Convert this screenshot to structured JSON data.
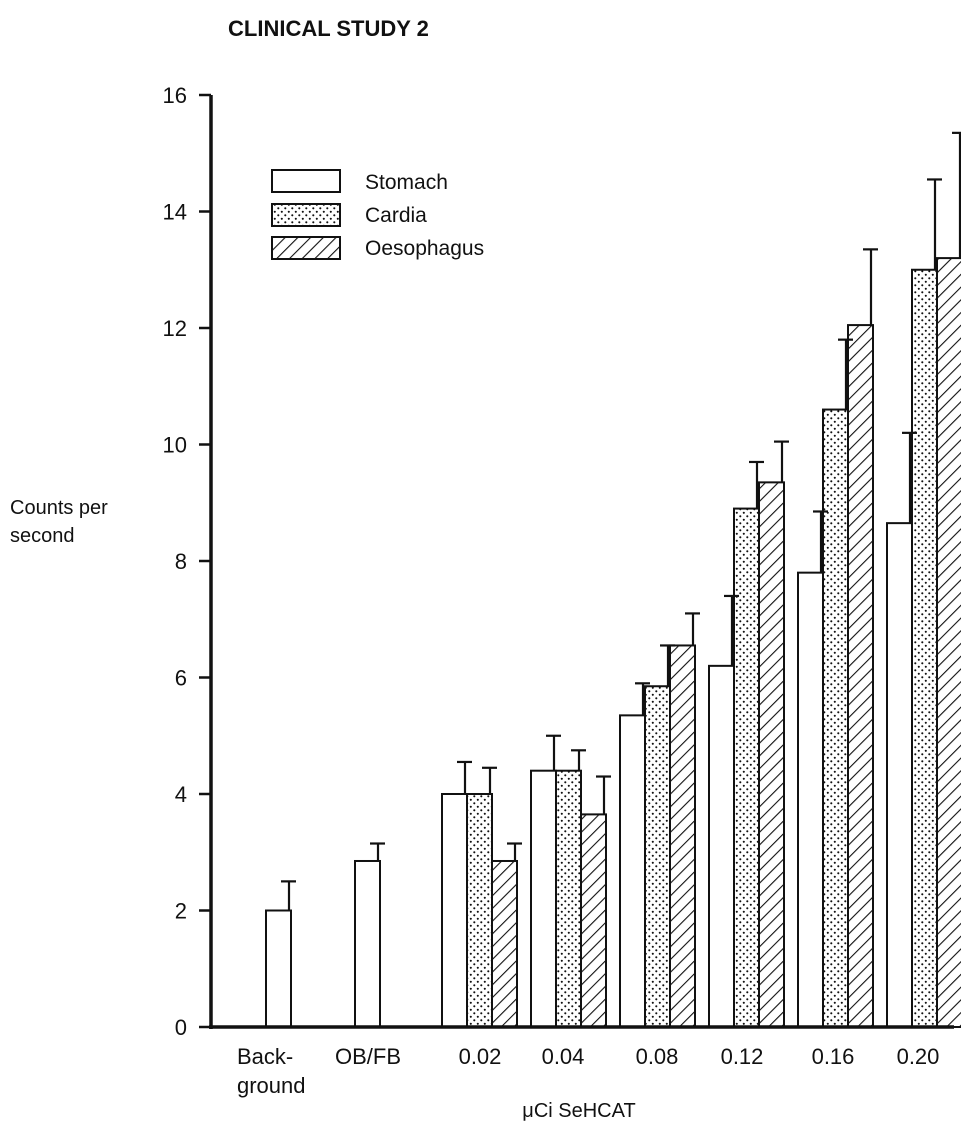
{
  "chart_data": {
    "type": "bar",
    "title": "CLINICAL STUDY 2",
    "ylabel": [
      "Counts per",
      "second"
    ],
    "xlabel": "μCi SeHCAT",
    "ylim": [
      0,
      16
    ],
    "yticks": [
      0,
      2,
      4,
      6,
      8,
      10,
      12,
      14,
      16
    ],
    "grid": false,
    "legend_position": "top-left",
    "categories": [
      [
        "Back-",
        "ground"
      ],
      [
        "OB/FB"
      ],
      [
        "0.02"
      ],
      [
        "0.04"
      ],
      [
        "0.08"
      ],
      [
        "0.12"
      ],
      [
        "0.16"
      ],
      [
        "0.20"
      ]
    ],
    "series": [
      {
        "name": "Stomach",
        "pattern": "blank",
        "values": [
          2.0,
          2.85,
          4.0,
          4.4,
          5.35,
          6.2,
          7.8,
          8.65
        ],
        "errors": [
          0.5,
          0.3,
          0.55,
          0.6,
          0.55,
          1.2,
          1.05,
          1.55
        ]
      },
      {
        "name": "Cardia",
        "pattern": "dotted",
        "values": [
          null,
          null,
          4.0,
          4.4,
          5.85,
          8.9,
          10.6,
          13.0
        ],
        "errors": [
          null,
          null,
          0.45,
          0.35,
          0.7,
          0.8,
          1.2,
          1.55
        ]
      },
      {
        "name": "Oesophagus",
        "pattern": "hatched",
        "values": [
          null,
          null,
          2.85,
          3.65,
          6.55,
          9.35,
          12.05,
          13.2
        ],
        "errors": [
          null,
          null,
          0.3,
          0.65,
          0.55,
          0.7,
          1.3,
          2.15
        ]
      }
    ]
  }
}
